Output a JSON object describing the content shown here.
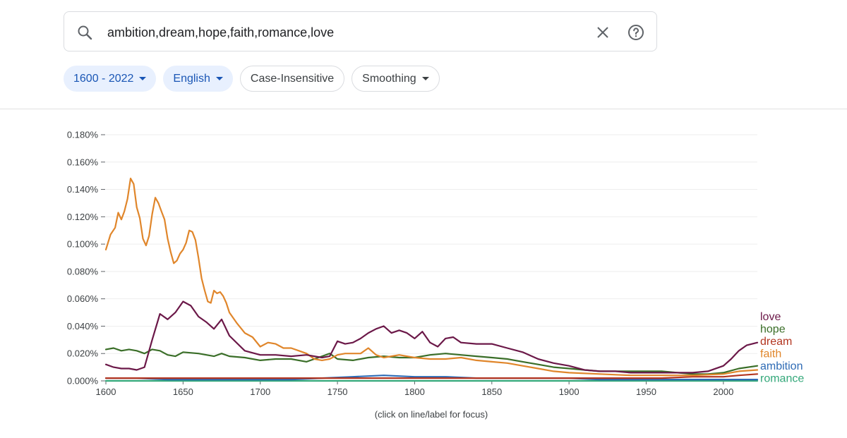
{
  "search": {
    "query": "ambition,dream,hope,faith,romance,love",
    "search_icon": "search-icon",
    "clear_icon": "close-icon",
    "help_icon": "help-circle-icon"
  },
  "filters": {
    "year_range": "1600 - 2022",
    "corpus": "English",
    "case": "Case-Insensitive",
    "smoothing": "Smoothing"
  },
  "hint": "(click on line/label for focus)",
  "chart_data": {
    "type": "line",
    "xlim": [
      1600,
      2022
    ],
    "ylim": [
      0,
      0.0018
    ],
    "x_ticks": [
      "1600",
      "1650",
      "1700",
      "1750",
      "1800",
      "1850",
      "1900",
      "1950",
      "2000"
    ],
    "y_ticks": [
      "0.000%",
      "0.020%",
      "0.040%",
      "0.060%",
      "0.080%",
      "0.100%",
      "0.120%",
      "0.140%",
      "0.160%",
      "0.180%"
    ],
    "grid": true,
    "legend": "right-end labels",
    "series": [
      {
        "name": "love",
        "color": "#6b1848",
        "points": [
          [
            1600,
            0.00012
          ],
          [
            1605,
            0.0001
          ],
          [
            1610,
            9e-05
          ],
          [
            1615,
            9e-05
          ],
          [
            1620,
            8e-05
          ],
          [
            1625,
            0.0001
          ],
          [
            1630,
            0.0003
          ],
          [
            1635,
            0.00049
          ],
          [
            1640,
            0.00045
          ],
          [
            1645,
            0.0005
          ],
          [
            1650,
            0.00058
          ],
          [
            1655,
            0.00055
          ],
          [
            1660,
            0.00047
          ],
          [
            1665,
            0.00043
          ],
          [
            1670,
            0.00038
          ],
          [
            1675,
            0.00045
          ],
          [
            1680,
            0.00033
          ],
          [
            1690,
            0.00022
          ],
          [
            1700,
            0.00019
          ],
          [
            1710,
            0.00019
          ],
          [
            1720,
            0.00018
          ],
          [
            1730,
            0.00019
          ],
          [
            1740,
            0.00017
          ],
          [
            1745,
            0.00018
          ],
          [
            1750,
            0.00029
          ],
          [
            1755,
            0.00027
          ],
          [
            1760,
            0.00028
          ],
          [
            1765,
            0.00031
          ],
          [
            1770,
            0.00035
          ],
          [
            1775,
            0.00038
          ],
          [
            1780,
            0.0004
          ],
          [
            1785,
            0.00035
          ],
          [
            1790,
            0.00037
          ],
          [
            1795,
            0.00035
          ],
          [
            1800,
            0.00031
          ],
          [
            1805,
            0.00036
          ],
          [
            1810,
            0.00028
          ],
          [
            1815,
            0.00025
          ],
          [
            1820,
            0.00031
          ],
          [
            1825,
            0.00032
          ],
          [
            1830,
            0.00028
          ],
          [
            1840,
            0.00027
          ],
          [
            1850,
            0.00027
          ],
          [
            1860,
            0.00024
          ],
          [
            1870,
            0.00021
          ],
          [
            1880,
            0.00016
          ],
          [
            1890,
            0.00013
          ],
          [
            1900,
            0.00011
          ],
          [
            1910,
            8e-05
          ],
          [
            1920,
            7e-05
          ],
          [
            1930,
            7e-05
          ],
          [
            1940,
            6e-05
          ],
          [
            1950,
            6e-05
          ],
          [
            1960,
            6e-05
          ],
          [
            1970,
            6e-05
          ],
          [
            1980,
            6e-05
          ],
          [
            1990,
            7e-05
          ],
          [
            2000,
            0.00011
          ],
          [
            2005,
            0.00016
          ],
          [
            2010,
            0.00022
          ],
          [
            2015,
            0.00026
          ],
          [
            2022,
            0.00028
          ]
        ]
      },
      {
        "name": "hope",
        "color": "#3a6e28",
        "points": [
          [
            1600,
            0.00023
          ],
          [
            1605,
            0.00024
          ],
          [
            1610,
            0.00022
          ],
          [
            1615,
            0.00023
          ],
          [
            1620,
            0.00022
          ],
          [
            1625,
            0.0002
          ],
          [
            1630,
            0.00023
          ],
          [
            1635,
            0.00022
          ],
          [
            1640,
            0.00019
          ],
          [
            1645,
            0.00018
          ],
          [
            1650,
            0.00021
          ],
          [
            1660,
            0.0002
          ],
          [
            1670,
            0.00018
          ],
          [
            1675,
            0.0002
          ],
          [
            1680,
            0.00018
          ],
          [
            1690,
            0.00017
          ],
          [
            1700,
            0.00015
          ],
          [
            1710,
            0.00016
          ],
          [
            1720,
            0.00016
          ],
          [
            1730,
            0.00014
          ],
          [
            1740,
            0.00018
          ],
          [
            1745,
            0.0002
          ],
          [
            1750,
            0.00016
          ],
          [
            1760,
            0.00015
          ],
          [
            1770,
            0.00017
          ],
          [
            1780,
            0.00018
          ],
          [
            1790,
            0.00017
          ],
          [
            1800,
            0.00017
          ],
          [
            1810,
            0.00019
          ],
          [
            1820,
            0.0002
          ],
          [
            1830,
            0.00019
          ],
          [
            1840,
            0.00018
          ],
          [
            1850,
            0.00017
          ],
          [
            1860,
            0.00016
          ],
          [
            1870,
            0.00014
          ],
          [
            1880,
            0.00012
          ],
          [
            1890,
            0.0001
          ],
          [
            1900,
            9e-05
          ],
          [
            1910,
            8e-05
          ],
          [
            1920,
            7e-05
          ],
          [
            1930,
            7e-05
          ],
          [
            1940,
            7e-05
          ],
          [
            1950,
            7e-05
          ],
          [
            1960,
            7e-05
          ],
          [
            1970,
            6e-05
          ],
          [
            1980,
            5e-05
          ],
          [
            1990,
            5e-05
          ],
          [
            2000,
            6e-05
          ],
          [
            2010,
            9e-05
          ],
          [
            2022,
            0.00011
          ]
        ]
      },
      {
        "name": "dream",
        "color": "#b33520",
        "points": [
          [
            1600,
            2e-05
          ],
          [
            1620,
            2e-05
          ],
          [
            1640,
            2e-05
          ],
          [
            1660,
            2e-05
          ],
          [
            1680,
            2e-05
          ],
          [
            1700,
            2e-05
          ],
          [
            1720,
            2e-05
          ],
          [
            1740,
            2e-05
          ],
          [
            1760,
            2e-05
          ],
          [
            1780,
            2e-05
          ],
          [
            1800,
            2e-05
          ],
          [
            1820,
            2e-05
          ],
          [
            1840,
            2e-05
          ],
          [
            1860,
            2e-05
          ],
          [
            1880,
            2e-05
          ],
          [
            1900,
            2e-05
          ],
          [
            1920,
            2e-05
          ],
          [
            1940,
            2e-05
          ],
          [
            1960,
            2e-05
          ],
          [
            1980,
            3e-05
          ],
          [
            2000,
            3e-05
          ],
          [
            2010,
            4e-05
          ],
          [
            2022,
            5e-05
          ]
        ]
      },
      {
        "name": "faith",
        "color": "#e0862b",
        "points": [
          [
            1600,
            0.00096
          ],
          [
            1603,
            0.00107
          ],
          [
            1606,
            0.00112
          ],
          [
            1608,
            0.00123
          ],
          [
            1610,
            0.00118
          ],
          [
            1612,
            0.00124
          ],
          [
            1614,
            0.00133
          ],
          [
            1616,
            0.00148
          ],
          [
            1618,
            0.00144
          ],
          [
            1620,
            0.00127
          ],
          [
            1622,
            0.00119
          ],
          [
            1624,
            0.00104
          ],
          [
            1626,
            0.00099
          ],
          [
            1628,
            0.00106
          ],
          [
            1630,
            0.00122
          ],
          [
            1632,
            0.00134
          ],
          [
            1634,
            0.0013
          ],
          [
            1636,
            0.00124
          ],
          [
            1638,
            0.00118
          ],
          [
            1640,
            0.00104
          ],
          [
            1642,
            0.00094
          ],
          [
            1644,
            0.00086
          ],
          [
            1646,
            0.00088
          ],
          [
            1648,
            0.00093
          ],
          [
            1650,
            0.00096
          ],
          [
            1652,
            0.00101
          ],
          [
            1654,
            0.0011
          ],
          [
            1656,
            0.00109
          ],
          [
            1658,
            0.00103
          ],
          [
            1660,
            0.0009
          ],
          [
            1662,
            0.00075
          ],
          [
            1664,
            0.00066
          ],
          [
            1666,
            0.00058
          ],
          [
            1668,
            0.00057
          ],
          [
            1670,
            0.00066
          ],
          [
            1672,
            0.00064
          ],
          [
            1674,
            0.00065
          ],
          [
            1676,
            0.00062
          ],
          [
            1678,
            0.00057
          ],
          [
            1680,
            0.0005
          ],
          [
            1685,
            0.00042
          ],
          [
            1690,
            0.00035
          ],
          [
            1695,
            0.00032
          ],
          [
            1700,
            0.00025
          ],
          [
            1705,
            0.00028
          ],
          [
            1710,
            0.00027
          ],
          [
            1715,
            0.00024
          ],
          [
            1720,
            0.00024
          ],
          [
            1725,
            0.00022
          ],
          [
            1730,
            0.0002
          ],
          [
            1735,
            0.00016
          ],
          [
            1740,
            0.00015
          ],
          [
            1745,
            0.00016
          ],
          [
            1750,
            0.00019
          ],
          [
            1755,
            0.0002
          ],
          [
            1760,
            0.0002
          ],
          [
            1765,
            0.0002
          ],
          [
            1770,
            0.00024
          ],
          [
            1775,
            0.00019
          ],
          [
            1780,
            0.00017
          ],
          [
            1790,
            0.00019
          ],
          [
            1800,
            0.00017
          ],
          [
            1810,
            0.00016
          ],
          [
            1820,
            0.00016
          ],
          [
            1830,
            0.00017
          ],
          [
            1840,
            0.00015
          ],
          [
            1850,
            0.00014
          ],
          [
            1860,
            0.00013
          ],
          [
            1870,
            0.00011
          ],
          [
            1880,
            9e-05
          ],
          [
            1890,
            7e-05
          ],
          [
            1900,
            6e-05
          ],
          [
            1920,
            5e-05
          ],
          [
            1940,
            4e-05
          ],
          [
            1960,
            4e-05
          ],
          [
            1980,
            4e-05
          ],
          [
            2000,
            5e-05
          ],
          [
            2010,
            7e-05
          ],
          [
            2022,
            8e-05
          ]
        ]
      },
      {
        "name": "ambition",
        "color": "#2e6bb5",
        "points": [
          [
            1600,
            2e-05
          ],
          [
            1620,
            2e-05
          ],
          [
            1640,
            1e-05
          ],
          [
            1660,
            1e-05
          ],
          [
            1680,
            1e-05
          ],
          [
            1700,
            1e-05
          ],
          [
            1720,
            1e-05
          ],
          [
            1740,
            2e-05
          ],
          [
            1760,
            3e-05
          ],
          [
            1780,
            4e-05
          ],
          [
            1800,
            3e-05
          ],
          [
            1820,
            3e-05
          ],
          [
            1840,
            2e-05
          ],
          [
            1860,
            2e-05
          ],
          [
            1880,
            2e-05
          ],
          [
            1900,
            2e-05
          ],
          [
            1920,
            1e-05
          ],
          [
            1940,
            1e-05
          ],
          [
            1960,
            1e-05
          ],
          [
            1980,
            1e-05
          ],
          [
            2000,
            1e-05
          ],
          [
            2022,
            1e-05
          ]
        ]
      },
      {
        "name": "romance",
        "color": "#34a87a",
        "points": [
          [
            1600,
            0.0
          ],
          [
            1650,
            0.0
          ],
          [
            1700,
            0.0
          ],
          [
            1750,
            0.0
          ],
          [
            1800,
            0.0
          ],
          [
            1850,
            0.0
          ],
          [
            1900,
            0.0
          ],
          [
            1950,
            0.0
          ],
          [
            2000,
            0.0
          ],
          [
            2022,
            0.0
          ]
        ]
      }
    ]
  }
}
